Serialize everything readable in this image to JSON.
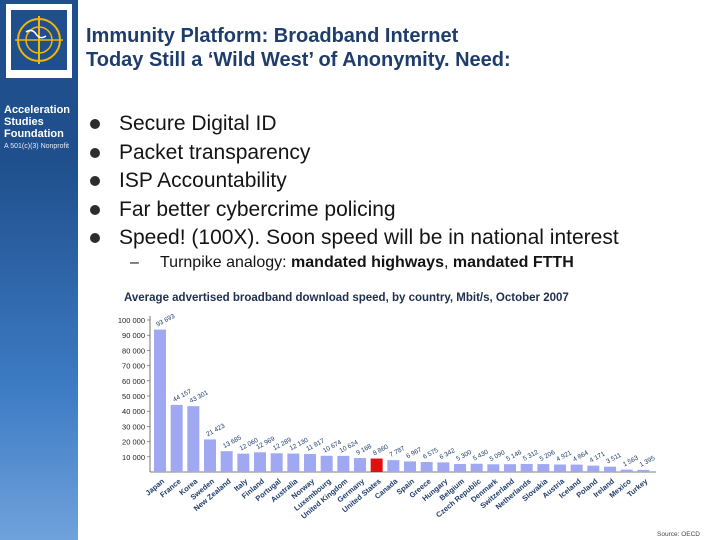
{
  "sidebar": {
    "org_line1": "Acceleration",
    "org_line2": "Studies",
    "org_line3": "Foundation",
    "org_sub": "A 501(c)(3) Nonprofit",
    "logo_icon": "globe-logo-icon",
    "colors": {
      "bg": "#1f4f8c",
      "accent": "#f2b705"
    }
  },
  "title": {
    "line1": "Immunity Platform: Broadband Internet",
    "line2": "Today Still a ‘Wild West’ of Anonymity. Need:"
  },
  "bullets": [
    "Secure Digital ID",
    "Packet transparency",
    "ISP Accountability",
    "Far better cybercrime policing",
    "Speed! (100X). Soon speed will be in national interest"
  ],
  "sub_bullet": {
    "dash": "–",
    "text_prefix": "Turnpike analogy: ",
    "bold1": "mandated highways",
    "comma": ", ",
    "bold2": "mandated FTTH"
  },
  "chart_data": {
    "type": "bar",
    "title": "Average advertised broadband download speed, by country, Mbit/s, October 2007",
    "source": "Source: OECD",
    "y_ticks": [
      "10 000",
      "20 000",
      "30 000",
      "40 000",
      "50 000",
      "60 000",
      "70 000",
      "80 000",
      "90 000",
      "100 000"
    ],
    "ylim": [
      0,
      100000
    ],
    "bar_color": "#9fa8f0",
    "highlight_color": "#e01010",
    "highlight_category": "United States",
    "categories": [
      "Japan",
      "France",
      "Korea",
      "Sweden",
      "New Zealand",
      "Italy",
      "Finland",
      "Portugal",
      "Australia",
      "Norway",
      "Luxembourg",
      "United Kingdom",
      "Germany",
      "United States",
      "Canada",
      "Spain",
      "Greece",
      "Hungary",
      "Belgium",
      "Czech Republic",
      "Denmark",
      "Switzerland",
      "Netherlands",
      "Slovakia",
      "Austria",
      "Iceland",
      "Poland",
      "Ireland",
      "Mexico",
      "Turkey"
    ],
    "values": [
      93693,
      44157,
      43301,
      21423,
      13685,
      12060,
      12969,
      12289,
      12130,
      11817,
      10674,
      10624,
      9168,
      8860,
      7787,
      6967,
      6575,
      6342,
      5300,
      5430,
      5090,
      5146,
      5312,
      5206,
      4921,
      4864,
      4171,
      3511,
      1563,
      1395
    ],
    "value_labels": [
      "93 693",
      "44 157",
      "43 301",
      "21 423",
      "13 685",
      "12 060",
      "12 969",
      "12 289",
      "12 130",
      "11 817",
      "10 674",
      "10 624",
      "9 168",
      "8 860",
      "7 787",
      "6 967",
      "6 575",
      "6 342",
      "5 300",
      "5 430",
      "5 090",
      "5 146",
      "5 312",
      "5 206",
      "4 921",
      "4 864",
      "4 171",
      "3 511",
      "1 563",
      "1 395"
    ]
  }
}
